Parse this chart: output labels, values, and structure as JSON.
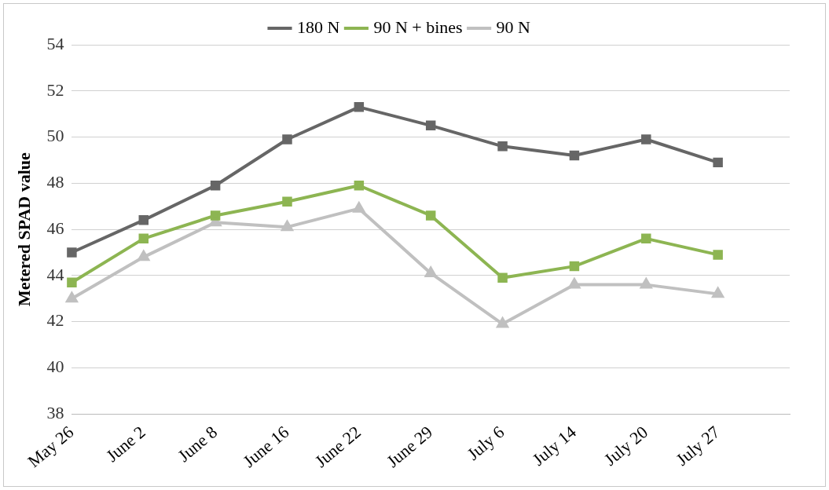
{
  "chart_data": {
    "type": "line",
    "ylabel": "Metered SPAD value",
    "categories": [
      "May 26",
      "June 2",
      "June 8",
      "June 16",
      "June 22",
      "June 29",
      "July 6",
      "July 14",
      "July 20",
      "July 27",
      null
    ],
    "series": [
      {
        "name": "180 N",
        "color": "#666666",
        "marker": "square",
        "values": [
          45.0,
          46.4,
          47.9,
          49.9,
          51.3,
          50.5,
          49.6,
          49.2,
          49.9,
          48.9,
          null
        ]
      },
      {
        "name": "90 N + bines",
        "color": "#8db552",
        "marker": "square",
        "values": [
          43.7,
          45.6,
          46.6,
          47.2,
          47.9,
          46.6,
          43.9,
          44.4,
          45.6,
          44.9,
          null
        ]
      },
      {
        "name": "90 N",
        "color": "#c0c0c0",
        "marker": "triangle",
        "values": [
          43.0,
          44.8,
          46.3,
          46.1,
          46.9,
          44.1,
          41.9,
          43.6,
          43.6,
          43.2,
          null
        ]
      }
    ],
    "ylim": [
      38,
      54
    ],
    "yticks": [
      38,
      40,
      42,
      44,
      46,
      48,
      50,
      52,
      54
    ],
    "grid": "y",
    "legend": "top"
  }
}
